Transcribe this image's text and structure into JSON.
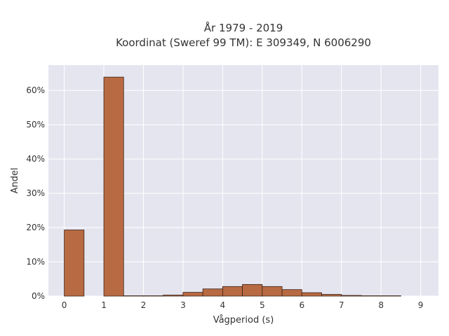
{
  "chart_data": {
    "type": "bar",
    "title": "År 1979 - 2019",
    "subtitle": "Koordinat (Sweref 99 TM): E 309349, N 6006290",
    "xlabel": "Vågperiod (s)",
    "ylabel": "Andel",
    "bin_width": 0.5,
    "bins": [
      {
        "start": 0.0,
        "value": 19.3
      },
      {
        "start": 0.5,
        "value": 0.0
      },
      {
        "start": 1.0,
        "value": 63.9
      },
      {
        "start": 1.5,
        "value": 0.1
      },
      {
        "start": 2.0,
        "value": 0.1
      },
      {
        "start": 2.5,
        "value": 0.3
      },
      {
        "start": 3.0,
        "value": 1.1
      },
      {
        "start": 3.5,
        "value": 2.1
      },
      {
        "start": 4.0,
        "value": 2.8
      },
      {
        "start": 4.5,
        "value": 3.4
      },
      {
        "start": 5.0,
        "value": 2.8
      },
      {
        "start": 5.5,
        "value": 1.9
      },
      {
        "start": 6.0,
        "value": 1.0
      },
      {
        "start": 6.5,
        "value": 0.5
      },
      {
        "start": 7.0,
        "value": 0.2
      },
      {
        "start": 7.5,
        "value": 0.1
      },
      {
        "start": 8.0,
        "value": 0.1
      }
    ],
    "x_ticks": [
      0,
      1,
      2,
      3,
      4,
      5,
      6,
      7,
      8,
      9
    ],
    "y_ticks": [
      0,
      10,
      20,
      30,
      40,
      50,
      60
    ],
    "y_tick_suffix": "%",
    "xlim": [
      -0.4,
      9.45
    ],
    "ylim": [
      0,
      67.4
    ],
    "grid": true,
    "colors": {
      "bar_fill": "#b86a42",
      "bar_stroke": "#3a2418",
      "plot_bg": "#e5e5f0",
      "grid": "#ffffff",
      "text": "#333333"
    }
  }
}
